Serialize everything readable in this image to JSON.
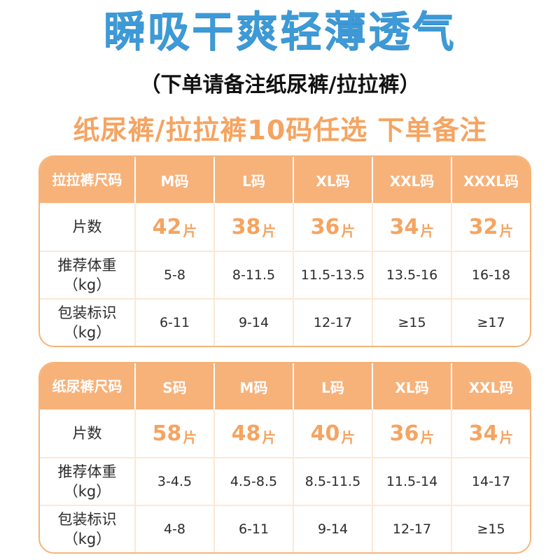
{
  "headline": "瞬吸干爽轻薄透气",
  "order_note": "（下单请备注纸尿裤/拉拉裤）",
  "promo": "纸尿裤/拉拉裤10码任选 下单备注",
  "colors": {
    "headline": "#3d9ad6",
    "accent": "#f5a461",
    "header_bg": "#f7b27a",
    "border": "#f5b478"
  },
  "tables": [
    {
      "header_label_line1": "拉拉裤",
      "header_label_line2": "尺码",
      "sizes": [
        "M码",
        "L码",
        "XL码",
        "XXL码",
        "XXXL码"
      ],
      "pieces_label": "片数",
      "pieces": [
        "42",
        "38",
        "36",
        "34",
        "32"
      ],
      "pieces_unit": "片",
      "weight_label": "推荐体重",
      "weight_unit": "（kg）",
      "weights": [
        "5-8",
        "8-11.5",
        "11.5-13.5",
        "13.5-16",
        "16-18"
      ],
      "pack_label": "包装标识",
      "pack_unit": "（kg）",
      "packs": [
        "6-11",
        "9-14",
        "12-17",
        "≥15",
        "≥17"
      ]
    },
    {
      "header_label_line1": "纸尿裤",
      "header_label_line2": "尺码",
      "sizes": [
        "S码",
        "M码",
        "L码",
        "XL码",
        "XXL码"
      ],
      "pieces_label": "片数",
      "pieces": [
        "58",
        "48",
        "40",
        "36",
        "34"
      ],
      "pieces_unit": "片",
      "weight_label": "推荐体重",
      "weight_unit": "（kg）",
      "weights": [
        "3-4.5",
        "4.5-8.5",
        "8.5-11.5",
        "11.5-14",
        "14-17"
      ],
      "pack_label": "包装标识",
      "pack_unit": "（kg）",
      "packs": [
        "4-8",
        "6-11",
        "9-14",
        "12-17",
        "≥15"
      ]
    }
  ]
}
